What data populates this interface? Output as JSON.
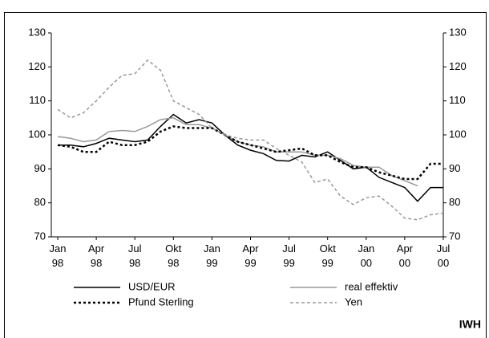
{
  "chart_data": {
    "type": "line",
    "categories": [
      "Jan 98",
      null,
      null,
      "Apr 98",
      null,
      null,
      "Jul 98",
      null,
      null,
      "Okt 98",
      null,
      null,
      "Jan 99",
      null,
      null,
      "Apr 99",
      null,
      null,
      "Jul 99",
      null,
      null,
      "Okt 99",
      null,
      null,
      "Jan 00",
      null,
      null,
      "Apr 00",
      null,
      null,
      "Jul 00"
    ],
    "series": [
      {
        "name": "USD/EUR",
        "color": "#000000",
        "style": "solid",
        "values": [
          97,
          97,
          96.5,
          97.5,
          99,
          98.5,
          98,
          98.5,
          102.5,
          106,
          103.5,
          104.5,
          103.5,
          100,
          97,
          95.5,
          94.5,
          92.5,
          92.3,
          94,
          93.5,
          95,
          92.5,
          90,
          90.5,
          87.5,
          86,
          84.5,
          80.5,
          84.5,
          84.5
        ]
      },
      {
        "name": "real effektiv",
        "color": "#999999",
        "style": "solid",
        "values": [
          99.5,
          99,
          98,
          98.5,
          101,
          101.3,
          101,
          102.5,
          104.5,
          105,
          103,
          103,
          102,
          100,
          98,
          97,
          96.5,
          95,
          95,
          95,
          94,
          94,
          93,
          91,
          90.5,
          90.5,
          88,
          86.5,
          85,
          null,
          null
        ]
      },
      {
        "name": "Pfund Sterling",
        "color": "#000000",
        "style": "dotted",
        "values": [
          97,
          96.5,
          95,
          95,
          98,
          97,
          97,
          98,
          101,
          102.5,
          102,
          102,
          102,
          100,
          98,
          97,
          96,
          95,
          95.5,
          96,
          94,
          94,
          92,
          90.5,
          90.5,
          89,
          88,
          87,
          87,
          91.5,
          91.5
        ]
      },
      {
        "name": "Yen",
        "color": "#999999",
        "style": "dashed",
        "values": [
          107.5,
          105,
          106.5,
          110,
          114,
          117.5,
          118,
          122,
          119,
          110,
          108,
          106,
          102,
          100,
          99,
          98.5,
          98.5,
          96,
          94,
          92,
          86,
          87,
          82,
          79.5,
          81.5,
          82,
          79,
          75.5,
          75,
          76.5,
          77
        ]
      }
    ],
    "ylim": [
      70,
      130
    ],
    "yticks": [
      70,
      80,
      90,
      100,
      110,
      120,
      130
    ],
    "y2lim": [
      70,
      130
    ],
    "y2ticks": [
      70,
      80,
      90,
      100,
      110,
      120,
      130
    ],
    "grid": false,
    "source": "IWH"
  }
}
